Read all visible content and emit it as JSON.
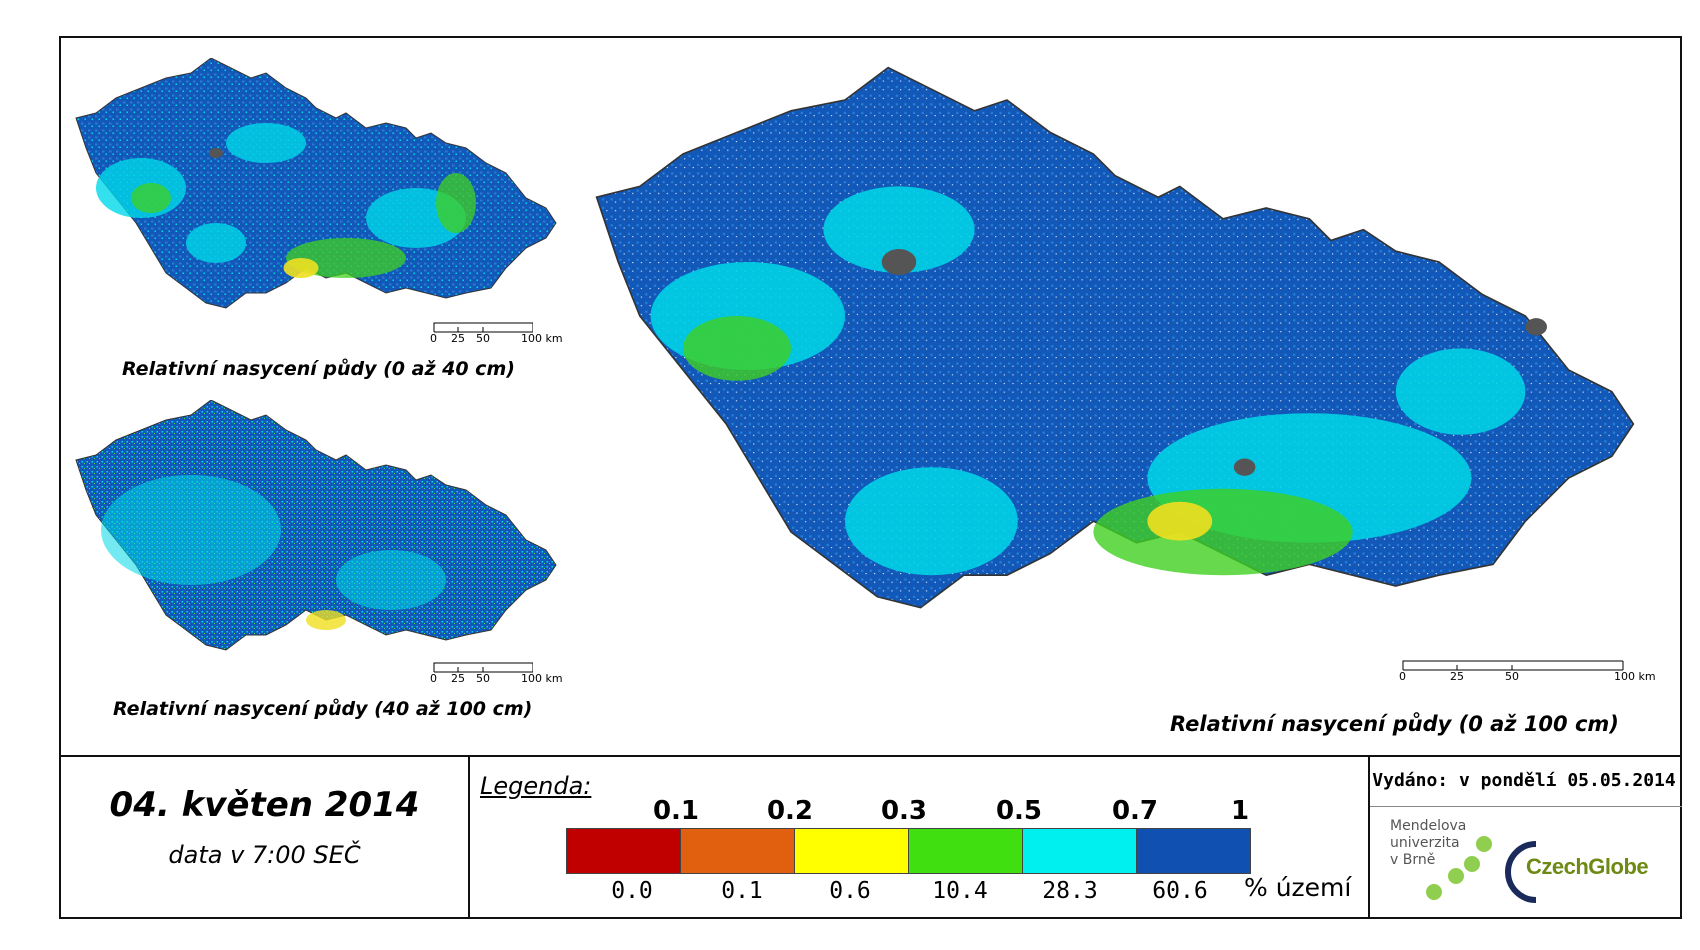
{
  "maps": {
    "top_left": {
      "caption": "Relativní nasycení půdy (0 až 40 cm)"
    },
    "bottom_left": {
      "caption": "Relativní nasycení půdy (40 až 100 cm)"
    },
    "main": {
      "caption": "Relativní nasycení půdy (0 až 100 cm)"
    }
  },
  "scalebar": {
    "labels": [
      "0",
      "25",
      "50",
      "100 km"
    ]
  },
  "date": {
    "title": "04. květen 2014",
    "time": "data v 7:00 SEČ"
  },
  "legend": {
    "title": "Legenda:",
    "thresholds": [
      "0.1",
      "0.2",
      "0.3",
      "0.5",
      "0.7",
      "1"
    ],
    "colors": [
      "#c00000",
      "#e06010",
      "#ffff00",
      "#40e010",
      "#00f0f0",
      "#1050b0"
    ],
    "percentages": [
      "0.0",
      "0.1",
      "0.6",
      "10.4",
      "28.3",
      "60.6"
    ],
    "unit": "% území"
  },
  "issued": "Vydáno: v pondělí 05.05.2014",
  "logos": {
    "mendel": [
      "Mendelova",
      "univerzita",
      "v Brně"
    ],
    "czechglobe": "CzechGlobe"
  }
}
